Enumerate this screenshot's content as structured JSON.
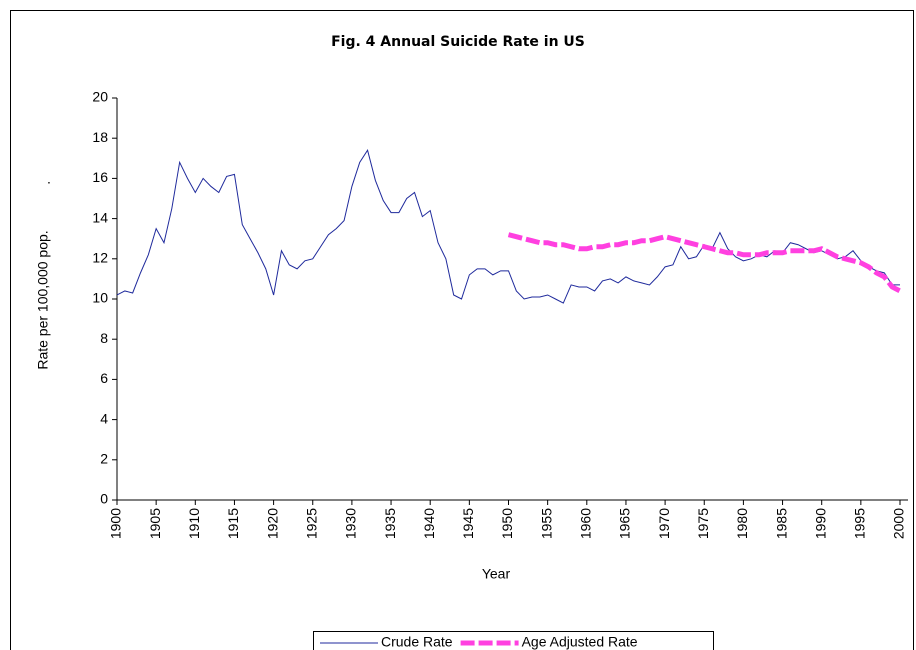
{
  "chart_data": {
    "type": "line",
    "title": "Fig. 4  Annual Suicide Rate in US",
    "xlabel": "Year",
    "ylabel": "Rate per 100,000 pop.",
    "annotation": ".",
    "x": [
      1900,
      1901,
      1902,
      1903,
      1904,
      1905,
      1906,
      1907,
      1908,
      1909,
      1910,
      1911,
      1912,
      1913,
      1914,
      1915,
      1916,
      1917,
      1918,
      1919,
      1920,
      1921,
      1922,
      1923,
      1924,
      1925,
      1926,
      1927,
      1928,
      1929,
      1930,
      1931,
      1932,
      1933,
      1934,
      1935,
      1936,
      1937,
      1938,
      1939,
      1940,
      1941,
      1942,
      1943,
      1944,
      1945,
      1946,
      1947,
      1948,
      1949,
      1950,
      1951,
      1952,
      1953,
      1954,
      1955,
      1956,
      1957,
      1958,
      1959,
      1960,
      1961,
      1962,
      1963,
      1964,
      1965,
      1966,
      1967,
      1968,
      1969,
      1970,
      1971,
      1972,
      1973,
      1974,
      1975,
      1976,
      1977,
      1978,
      1979,
      1980,
      1981,
      1982,
      1983,
      1984,
      1985,
      1986,
      1987,
      1988,
      1989,
      1990,
      1991,
      1992,
      1993,
      1994,
      1995,
      1996,
      1997,
      1998,
      1999,
      2000
    ],
    "series": [
      {
        "name": "Crude Rate",
        "color": "#1f2a9c",
        "width": 1,
        "dashed": false,
        "values": [
          10.2,
          10.4,
          10.3,
          11.3,
          12.2,
          13.5,
          12.8,
          14.5,
          16.8,
          16.0,
          15.3,
          16.0,
          15.6,
          15.3,
          16.1,
          16.2,
          13.7,
          13.0,
          12.3,
          11.5,
          10.2,
          12.4,
          11.7,
          11.5,
          11.9,
          12.0,
          12.6,
          13.2,
          13.5,
          13.9,
          15.6,
          16.8,
          17.4,
          15.9,
          14.9,
          14.3,
          14.3,
          15.0,
          15.3,
          14.1,
          14.4,
          12.8,
          12.0,
          10.2,
          10.0,
          11.2,
          11.5,
          11.5,
          11.2,
          11.4,
          11.4,
          10.4,
          10.0,
          10.1,
          10.1,
          10.2,
          10.0,
          9.8,
          10.7,
          10.6,
          10.6,
          10.4,
          10.9,
          11.0,
          10.8,
          11.1,
          10.9,
          10.8,
          10.7,
          11.1,
          11.6,
          11.7,
          12.6,
          12.0,
          12.1,
          12.7,
          12.5,
          13.3,
          12.5,
          12.1,
          11.9,
          12.0,
          12.2,
          12.1,
          12.4,
          12.3,
          12.8,
          12.7,
          12.5,
          12.3,
          12.4,
          12.2,
          12.0,
          12.1,
          12.4,
          11.9,
          11.6,
          11.4,
          11.3,
          10.7,
          10.7
        ]
      },
      {
        "name": "Age Adjusted Rate",
        "color": "#ff40e0",
        "width": 5,
        "dashed": true,
        "values": [
          null,
          null,
          null,
          null,
          null,
          null,
          null,
          null,
          null,
          null,
          null,
          null,
          null,
          null,
          null,
          null,
          null,
          null,
          null,
          null,
          null,
          null,
          null,
          null,
          null,
          null,
          null,
          null,
          null,
          null,
          null,
          null,
          null,
          null,
          null,
          null,
          null,
          null,
          null,
          null,
          null,
          null,
          null,
          null,
          null,
          null,
          null,
          null,
          null,
          null,
          13.2,
          13.1,
          13.0,
          12.9,
          12.8,
          12.8,
          12.7,
          12.7,
          12.6,
          12.5,
          12.5,
          12.6,
          12.6,
          12.7,
          12.7,
          12.8,
          12.8,
          12.9,
          12.9,
          13.0,
          13.1,
          13.0,
          12.9,
          12.8,
          12.7,
          12.6,
          12.5,
          12.4,
          12.3,
          12.3,
          12.2,
          12.2,
          12.2,
          12.3,
          12.3,
          12.3,
          12.4,
          12.4,
          12.4,
          12.4,
          12.5,
          12.3,
          12.1,
          12.0,
          11.9,
          11.8,
          11.6,
          11.3,
          11.1,
          10.6,
          10.4
        ]
      }
    ],
    "xlim": [
      1900,
      2000
    ],
    "xticks": [
      1900,
      1905,
      1910,
      1915,
      1920,
      1925,
      1930,
      1935,
      1940,
      1945,
      1950,
      1955,
      1960,
      1965,
      1970,
      1975,
      1980,
      1985,
      1990,
      1995,
      2000
    ],
    "ylim": [
      0,
      20
    ],
    "yticks": [
      0,
      2,
      4,
      6,
      8,
      10,
      12,
      14,
      16,
      18,
      20
    ],
    "grid": false,
    "legend": "bottom"
  }
}
